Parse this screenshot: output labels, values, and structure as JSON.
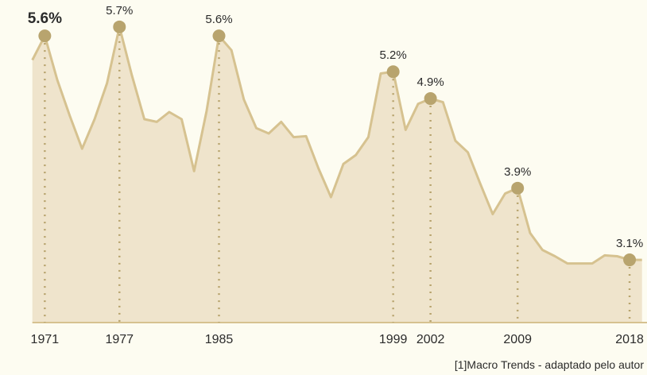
{
  "chart_data": {
    "type": "area",
    "x": [
      1970,
      1971,
      1972,
      1973,
      1974,
      1975,
      1976,
      1977,
      1978,
      1979,
      1980,
      1981,
      1982,
      1983,
      1984,
      1985,
      1986,
      1987,
      1988,
      1989,
      1990,
      1991,
      1992,
      1993,
      1994,
      1995,
      1996,
      1997,
      1998,
      1999,
      2000,
      2001,
      2002,
      2003,
      2004,
      2005,
      2006,
      2007,
      2008,
      2009,
      2010,
      2011,
      2012,
      2013,
      2014,
      2015,
      2016,
      2017,
      2018,
      2019
    ],
    "values": [
      5.33,
      5.6,
      5.11,
      4.71,
      4.34,
      4.67,
      5.07,
      5.7,
      5.16,
      4.67,
      4.64,
      4.75,
      4.67,
      4.09,
      4.76,
      5.6,
      5.44,
      4.89,
      4.57,
      4.51,
      4.64,
      4.47,
      4.48,
      4.12,
      3.8,
      4.17,
      4.27,
      4.47,
      5.18,
      5.2,
      4.55,
      4.84,
      4.9,
      4.86,
      4.43,
      4.3,
      3.95,
      3.61,
      3.84,
      3.9,
      3.4,
      3.21,
      3.14,
      3.06,
      3.06,
      3.06,
      3.15,
      3.14,
      3.1,
      3.1
    ],
    "value_labels": [
      null,
      "5.6%",
      null,
      null,
      null,
      null,
      null,
      "5.7%",
      null,
      null,
      null,
      null,
      null,
      null,
      null,
      "5.6%",
      null,
      null,
      null,
      null,
      null,
      null,
      null,
      null,
      null,
      null,
      null,
      null,
      null,
      "5.2%",
      null,
      null,
      "4.9%",
      null,
      null,
      null,
      null,
      null,
      null,
      "3.9%",
      null,
      null,
      null,
      null,
      null,
      null,
      null,
      null,
      "3.1%",
      null
    ],
    "xticks": [
      1971,
      1977,
      1985,
      1999,
      2002,
      2009,
      2018
    ],
    "xlim": [
      1967.4,
      2019.4
    ],
    "ylim": [
      2.4,
      6.0
    ],
    "color": "#d6c290",
    "source": "[1]Macro Trends - adaptado pelo autor"
  }
}
